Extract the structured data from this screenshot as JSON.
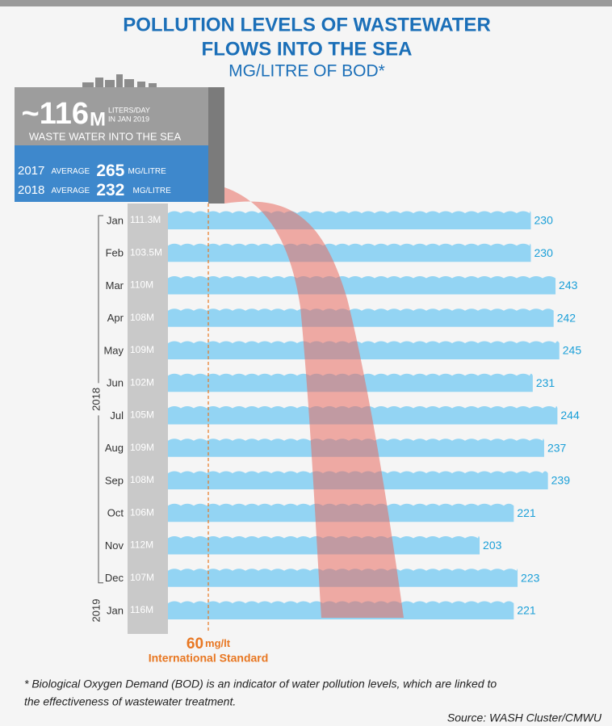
{
  "header": {
    "title_lines": [
      "POLLUTION LEVELS OF WASTEWATER",
      "FLOWS INTO THE SEA"
    ],
    "subtitle": "MG/LITRE OF BOD*"
  },
  "summary": {
    "flow": "~116",
    "flow_unit": "M",
    "flow_note_lines": [
      "LITERS/DAY",
      "IN JAN 2019"
    ],
    "caption": "WASTE WATER INTO THE SEA",
    "averages": [
      {
        "year": "2017",
        "label": "AVERAGE",
        "value": 265,
        "unit": "MG/LITRE"
      },
      {
        "year": "2018",
        "label": "AVERAGE",
        "value": 232,
        "unit": "MG/LITRE"
      }
    ]
  },
  "chart_data": {
    "type": "bar",
    "categories": [
      "Jan",
      "Feb",
      "Mar",
      "Apr",
      "May",
      "Jun",
      "Jul",
      "Aug",
      "Sep",
      "Oct",
      "Nov",
      "Dec",
      "Jan"
    ],
    "values": [
      230,
      230,
      243,
      242,
      245,
      231,
      244,
      237,
      239,
      221,
      203,
      223,
      221
    ],
    "flow_labels": [
      "111.3M",
      "103.5M",
      "110M",
      "108M",
      "109M",
      "102M",
      "105M",
      "109M",
      "108M",
      "106M",
      "112M",
      "107M",
      "116M"
    ],
    "color": "#93d4f3",
    "year_groups": [
      "2018",
      "2019"
    ],
    "standard": {
      "value": 60,
      "unit": "mg/lt",
      "label": "International Standard"
    }
  },
  "footnote_lines": [
    "* Biological Oxygen Demand (BOD) is an indicator of water pollution levels, which are linked to",
    "the effectiveness of wastewater treatment."
  ],
  "source": "Source: WASH Cluster/CMWU"
}
